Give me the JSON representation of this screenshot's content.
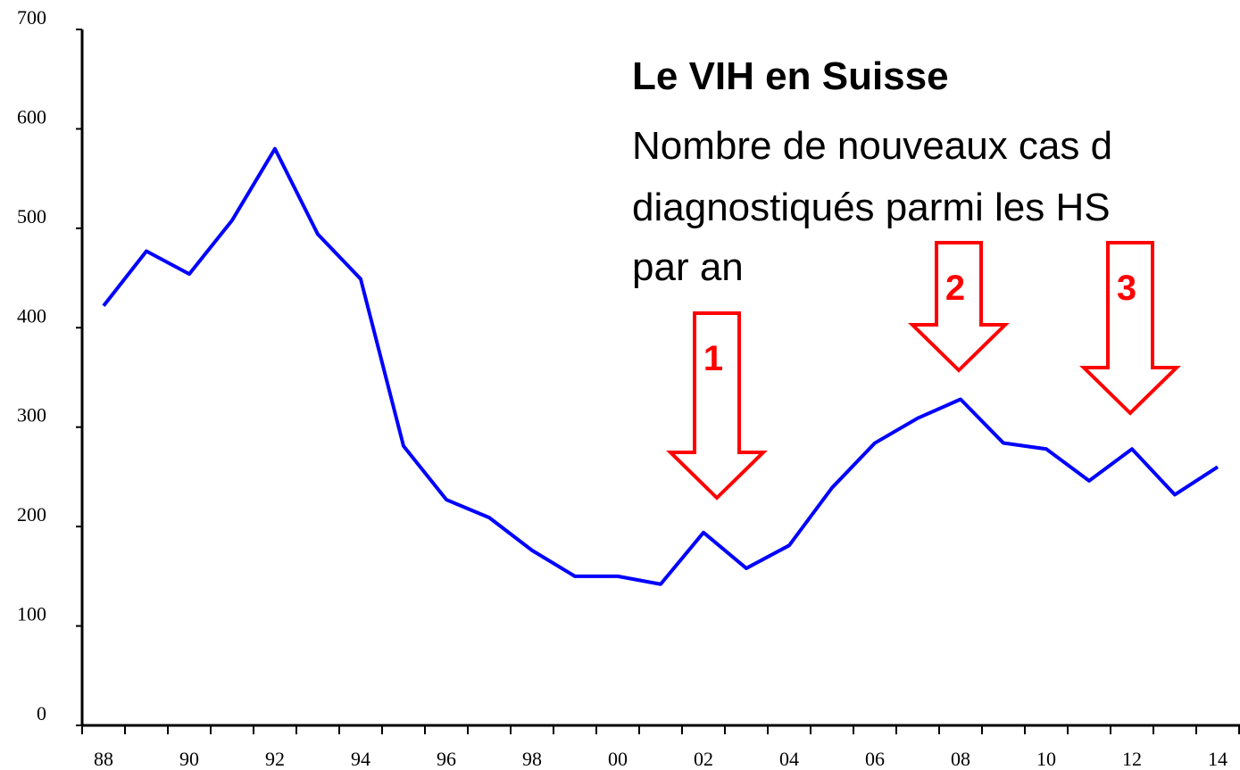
{
  "chart_data": {
    "type": "line",
    "title": "Le VIH en Suisse",
    "subtitle": [
      "Nombre de nouveaux cas d",
      "diagnostiqués parmi les HS",
      "par an"
    ],
    "categories": [
      "88",
      null,
      "90",
      null,
      "92",
      null,
      "94",
      null,
      "96",
      null,
      "98",
      null,
      "00",
      null,
      "02",
      null,
      "04",
      null,
      "06",
      null,
      "08",
      null,
      "10",
      null,
      "12",
      null,
      "14"
    ],
    "values": [
      422,
      477,
      454,
      508,
      580,
      494,
      449,
      281,
      227,
      209,
      176,
      150,
      150,
      142,
      194,
      158,
      181,
      239,
      284,
      309,
      328,
      284,
      278,
      246,
      278,
      232,
      260
    ],
    "color": "#0000ff",
    "ylim": [
      0,
      700
    ],
    "yticks": [
      0,
      100,
      200,
      300,
      400,
      500,
      600,
      700
    ],
    "grid": false,
    "annotations": [
      {
        "text": "1",
        "color": "#ff0000"
      },
      {
        "text": "2",
        "color": "#ff0000"
      },
      {
        "text": "3",
        "color": "#ff0000"
      }
    ]
  }
}
